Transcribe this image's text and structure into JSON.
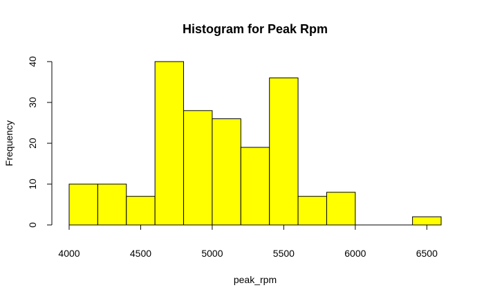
{
  "chart_data": {
    "type": "bar",
    "title": "Histogram for Peak Rpm",
    "xlabel": "peak_rpm",
    "ylabel": "Frequency",
    "bins": [
      {
        "start": 4000,
        "end": 4200,
        "count": 10
      },
      {
        "start": 4200,
        "end": 4400,
        "count": 10
      },
      {
        "start": 4400,
        "end": 4600,
        "count": 7
      },
      {
        "start": 4600,
        "end": 4800,
        "count": 40
      },
      {
        "start": 4800,
        "end": 5000,
        "count": 28
      },
      {
        "start": 5000,
        "end": 5200,
        "count": 26
      },
      {
        "start": 5200,
        "end": 5400,
        "count": 19
      },
      {
        "start": 5400,
        "end": 5600,
        "count": 36
      },
      {
        "start": 5600,
        "end": 5800,
        "count": 7
      },
      {
        "start": 5800,
        "end": 6000,
        "count": 8
      },
      {
        "start": 6000,
        "end": 6200,
        "count": 0
      },
      {
        "start": 6200,
        "end": 6400,
        "count": 0
      },
      {
        "start": 6400,
        "end": 6600,
        "count": 2
      }
    ],
    "xlim": [
      4000,
      6600
    ],
    "ylim": [
      0,
      40
    ],
    "x_ticks": [
      4000,
      4500,
      5000,
      5500,
      6000,
      6500
    ],
    "y_ticks": [
      0,
      10,
      20,
      30,
      40
    ],
    "bar_color": "#ffff00",
    "grid": false
  }
}
